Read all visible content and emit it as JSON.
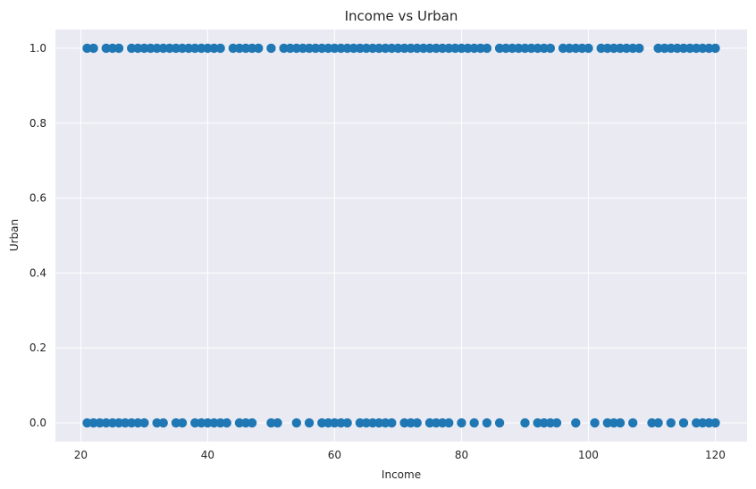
{
  "chart_data": {
    "type": "scatter",
    "title": "Income vs Urban",
    "xlabel": "Income",
    "ylabel": "Urban",
    "xlim": [
      16,
      125
    ],
    "ylim": [
      -0.05,
      1.05
    ],
    "xticks": [
      20,
      40,
      60,
      80,
      100,
      120
    ],
    "yticks": [
      0.0,
      0.2,
      0.4,
      0.6,
      0.8,
      1.0
    ],
    "ytick_labels": [
      "0.0",
      "0.2",
      "0.4",
      "0.6",
      "0.8",
      "1.0"
    ],
    "grid": true,
    "colors": {
      "points": "#1f77b4",
      "plot_bg": "#eaeaf2",
      "grid": "#ffffff"
    },
    "series": [
      {
        "x": [
          21,
          22,
          24,
          25,
          26,
          28,
          29,
          30,
          31,
          32,
          33,
          34,
          35,
          36,
          37,
          38,
          39,
          40,
          41,
          42,
          44,
          45,
          46,
          47,
          48,
          50,
          52,
          53,
          54,
          55,
          56,
          57,
          58,
          59,
          60,
          61,
          62,
          63,
          64,
          65,
          66,
          67,
          68,
          69,
          70,
          71,
          72,
          73,
          74,
          75,
          76,
          77,
          78,
          79,
          80,
          81,
          82,
          83,
          84,
          86,
          87,
          88,
          89,
          90,
          91,
          92,
          93,
          94,
          96,
          97,
          98,
          99,
          100,
          102,
          103,
          104,
          105,
          106,
          107,
          108,
          111,
          112,
          113,
          114,
          115,
          116,
          117,
          118,
          119,
          120
        ],
        "y": [
          1,
          1,
          1,
          1,
          1,
          1,
          1,
          1,
          1,
          1,
          1,
          1,
          1,
          1,
          1,
          1,
          1,
          1,
          1,
          1,
          1,
          1,
          1,
          1,
          1,
          1,
          1,
          1,
          1,
          1,
          1,
          1,
          1,
          1,
          1,
          1,
          1,
          1,
          1,
          1,
          1,
          1,
          1,
          1,
          1,
          1,
          1,
          1,
          1,
          1,
          1,
          1,
          1,
          1,
          1,
          1,
          1,
          1,
          1,
          1,
          1,
          1,
          1,
          1,
          1,
          1,
          1,
          1,
          1,
          1,
          1,
          1,
          1,
          1,
          1,
          1,
          1,
          1,
          1,
          1,
          1,
          1,
          1,
          1,
          1,
          1,
          1,
          1,
          1,
          1
        ]
      },
      {
        "x": [
          21,
          22,
          23,
          24,
          25,
          26,
          27,
          28,
          29,
          30,
          32,
          33,
          35,
          36,
          38,
          39,
          40,
          41,
          42,
          43,
          45,
          46,
          47,
          50,
          51,
          54,
          56,
          58,
          59,
          60,
          61,
          62,
          64,
          65,
          66,
          67,
          68,
          69,
          71,
          72,
          73,
          75,
          76,
          77,
          78,
          80,
          82,
          84,
          86,
          90,
          92,
          93,
          94,
          95,
          98,
          101,
          103,
          104,
          105,
          107,
          110,
          111,
          113,
          115,
          117,
          118,
          119,
          120
        ],
        "y": [
          0,
          0,
          0,
          0,
          0,
          0,
          0,
          0,
          0,
          0,
          0,
          0,
          0,
          0,
          0,
          0,
          0,
          0,
          0,
          0,
          0,
          0,
          0,
          0,
          0,
          0,
          0,
          0,
          0,
          0,
          0,
          0,
          0,
          0,
          0,
          0,
          0,
          0,
          0,
          0,
          0,
          0,
          0,
          0,
          0,
          0,
          0,
          0,
          0,
          0,
          0,
          0,
          0,
          0,
          0,
          0,
          0,
          0,
          0,
          0,
          0,
          0,
          0,
          0,
          0,
          0,
          0,
          0
        ]
      }
    ]
  }
}
